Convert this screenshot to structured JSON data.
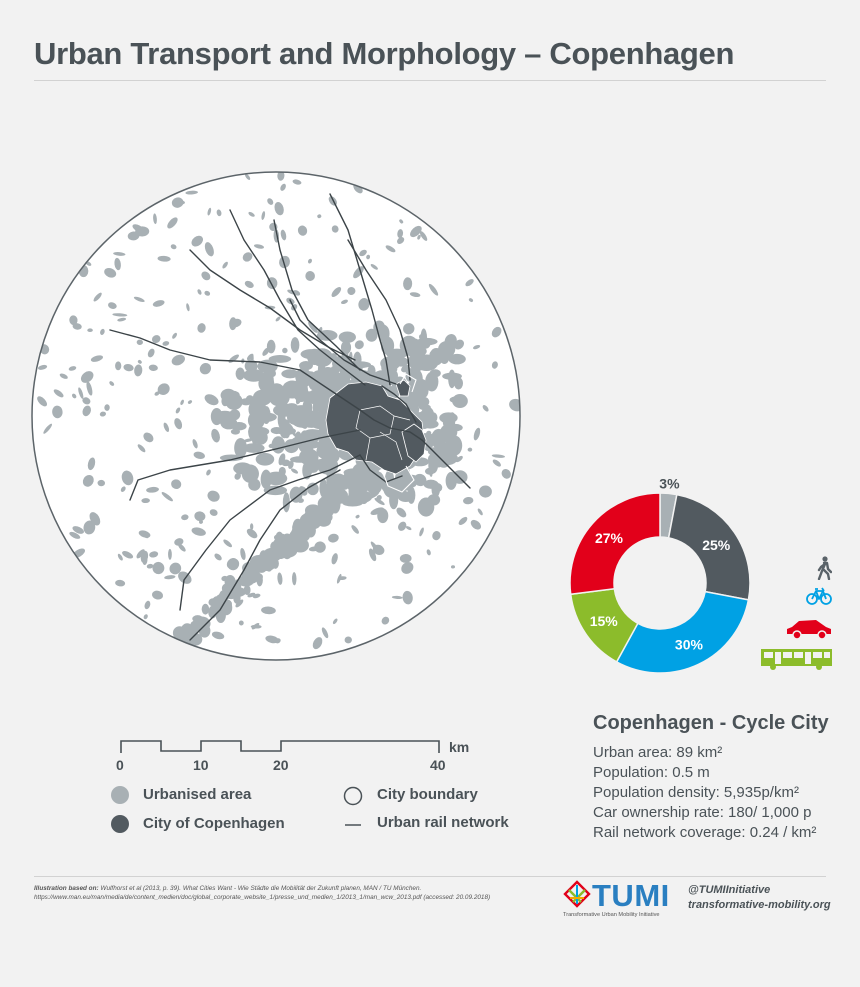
{
  "page": {
    "title": "Urban Transport and Morphology – Copenhagen"
  },
  "map": {
    "legend": {
      "urbanised": "Urbanised area",
      "city": "City of Copenhagen",
      "boundary": "City boundary",
      "rail": "Urban rail network"
    },
    "scale": {
      "unit": "km",
      "ticks": [
        "0",
        "10",
        "20",
        "40"
      ]
    }
  },
  "colors": {
    "urbanised": "#a8b0b4",
    "city": "#525a60",
    "walk": "#a8b0b4",
    "cycle": "#4a5a63",
    "car": "#e2001a",
    "transit": "#00a1e4",
    "bus_green": "#8cbc2b"
  },
  "chart_data": {
    "type": "pie",
    "title": "",
    "donut": true,
    "slices": [
      {
        "label": "3%",
        "value": 3,
        "color": "#a8b0b4",
        "mode": "walking"
      },
      {
        "label": "25%",
        "value": 25,
        "color": "#525a60",
        "mode": "cycling"
      },
      {
        "label": "30%",
        "value": 30,
        "color": "#00a1e4",
        "mode": "public transport"
      },
      {
        "label": "15%",
        "value": 15,
        "color": "#8cbc2b",
        "mode": "bus"
      },
      {
        "label": "27%",
        "value": 27,
        "color": "#e2001a",
        "mode": "car"
      }
    ]
  },
  "mode_icons": [
    "walking-icon",
    "bicycle-icon",
    "car-icon",
    "bus-icon"
  ],
  "info": {
    "title": "Copenhagen - Cycle City",
    "lines": [
      "Urban area: 89 km²",
      "Population: 0.5 m",
      "Population density: 5,935p/km²",
      "Car ownership rate: 180/ 1,000 p",
      "Rail network coverage: 0.24 / km²"
    ]
  },
  "footer": {
    "credit_label": "Illustration based on:",
    "credit_text": "Wulfhorst et al (2013, p. 39). What Cities Want - Wie Städte die Mobilität der Zukunft planen, MAN / TU München. https://www.man.eu/man/media/de/content_medien/doc/global_corporate_website_1/presse_und_medien_1/2013_1/man_wcw_2013.pdf (accessed: 20.09.2018)",
    "brand": "TUMI",
    "brand_sub": "Transformative Urban Mobility Initiative",
    "handle": "@TUMIInitiative",
    "website": "transformative-mobility.org"
  }
}
